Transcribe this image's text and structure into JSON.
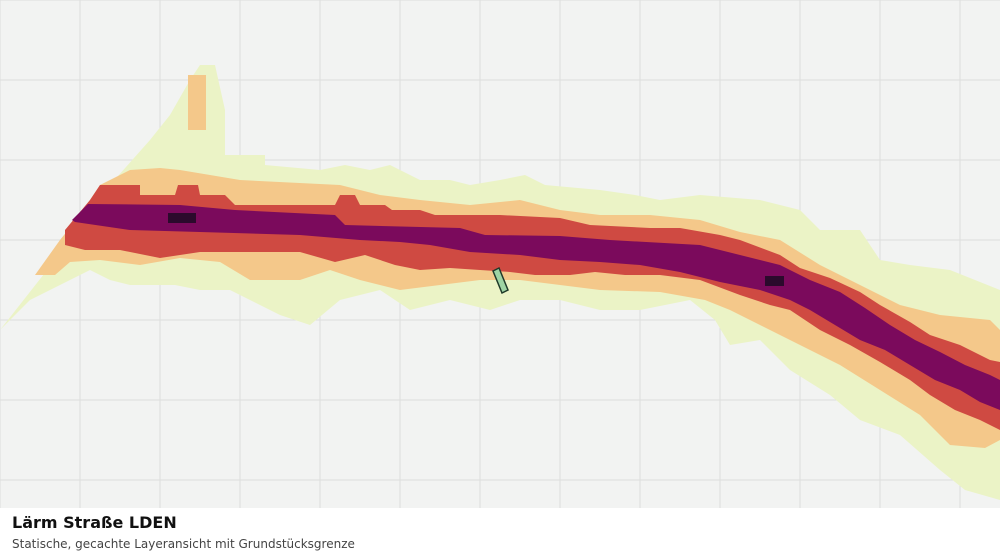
{
  "map": {
    "layer_name": "Lärm Straße LDEN",
    "colors": {
      "background": "#f2f3f2",
      "grid": "#dcdedc",
      "class_1": "#ebf3c6",
      "class_2": "#f4c88a",
      "class_3": "#cf4a42",
      "class_4": "#7b0a5c",
      "class_5": "#2b0a2c",
      "parcel_fill": "#9ed4a4",
      "parcel_stroke": "#1f3a2a"
    }
  },
  "caption": {
    "title": "Lärm Straße LDEN",
    "subtitle": "Statische, gecachte Layeransicht mit Grundstücksgrenze"
  }
}
